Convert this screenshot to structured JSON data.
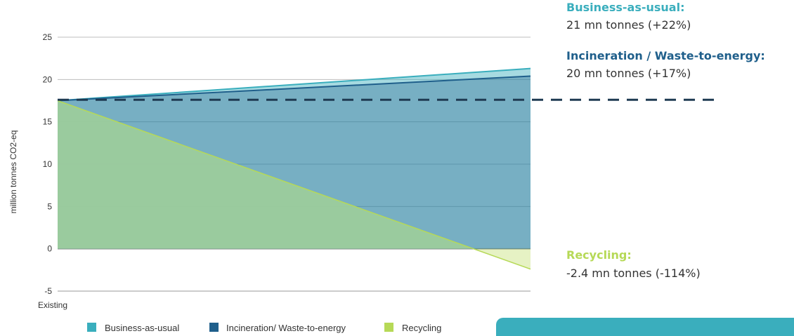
{
  "chart_data": {
    "type": "area",
    "ylabel": "million tonnes CO2-eq",
    "xlabel": "",
    "x_tick_labels": [
      "Existing"
    ],
    "ylim": [
      -5,
      25
    ],
    "yticks": [
      25,
      20,
      15,
      10,
      5,
      0,
      -5
    ],
    "x": [
      0,
      1
    ],
    "series": [
      {
        "name": "Business-as-usual",
        "values": [
          17.5,
          21.3
        ],
        "color": "#3aaebd"
      },
      {
        "name": "Incineration/ Waste-to-energy",
        "values": [
          17.5,
          20.4
        ],
        "color": "#1f5f8b"
      },
      {
        "name": "Recycling",
        "values": [
          17.5,
          -2.4
        ],
        "color": "#b6d957"
      }
    ],
    "reference_line": {
      "value": 17.6,
      "style": "dashed",
      "color": "#1e3a52"
    },
    "legend_position": "bottom"
  },
  "annotations": [
    {
      "id": "bau",
      "title": "Business-as-usual:",
      "value": "21 mn tonnes (+22%)",
      "color": "#3aaebd"
    },
    {
      "id": "incineration",
      "title": "Incineration / Waste-to-energy:",
      "value": "20 mn tonnes (+17%)",
      "color": "#1f5f8b"
    },
    {
      "id": "recycling",
      "title": "Recycling:",
      "value": "-2.4 mn tonnes (-114%)",
      "color": "#b6d957"
    }
  ]
}
